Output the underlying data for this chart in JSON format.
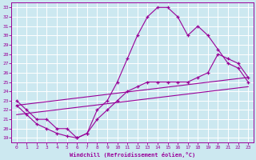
{
  "xlabel": "Windchill (Refroidissement éolien,°C)",
  "bg_color": "#cce8f0",
  "line_color": "#990099",
  "grid_color": "#ffffff",
  "xlim": [
    -0.5,
    23.5
  ],
  "ylim": [
    18.5,
    33.5
  ],
  "xticks": [
    0,
    1,
    2,
    3,
    4,
    5,
    6,
    7,
    8,
    9,
    10,
    11,
    12,
    13,
    14,
    15,
    16,
    17,
    18,
    19,
    20,
    21,
    22,
    23
  ],
  "yticks": [
    19,
    20,
    21,
    22,
    23,
    24,
    25,
    26,
    27,
    28,
    29,
    30,
    31,
    32,
    33
  ],
  "series1_x": [
    0,
    1,
    2,
    3,
    4,
    5,
    6,
    7,
    8,
    9,
    10,
    11,
    12,
    13,
    14,
    15,
    16,
    17,
    18,
    19,
    20,
    21,
    22,
    23
  ],
  "series1_y": [
    23,
    22,
    21,
    21,
    20,
    20,
    19,
    19.5,
    22,
    23,
    25,
    27.5,
    30,
    32,
    33,
    33,
    32,
    30,
    31,
    30,
    28.5,
    27,
    26.5,
    25
  ],
  "series2_x": [
    0,
    1,
    2,
    3,
    4,
    5,
    6,
    7,
    8,
    9,
    10,
    11,
    12,
    13,
    14,
    15,
    16,
    17,
    18,
    19,
    20,
    21,
    22,
    23
  ],
  "series2_y": [
    22.5,
    21.5,
    20.5,
    20,
    19.5,
    19.2,
    19,
    19.5,
    21,
    22,
    23,
    24,
    24.5,
    25,
    25,
    25,
    25,
    25,
    25.5,
    26,
    28,
    27.5,
    27,
    25.5
  ],
  "series3_x": [
    0,
    23
  ],
  "series3_y": [
    22.5,
    25.5
  ],
  "series4_x": [
    0,
    23
  ],
  "series4_y": [
    21.5,
    24.5
  ]
}
